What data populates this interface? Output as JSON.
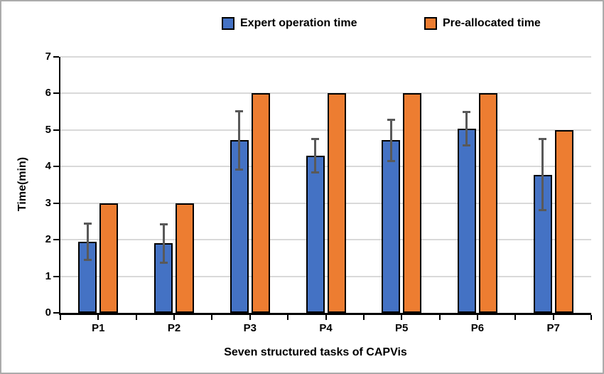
{
  "legend": {
    "items": [
      {
        "label": "Expert operation time",
        "color": "#4472c4"
      },
      {
        "label": "Pre-allocated time",
        "color": "#ed7d31"
      }
    ]
  },
  "chart_data": {
    "type": "bar",
    "title": "",
    "categories": [
      "P1",
      "P2",
      "P3",
      "P4",
      "P5",
      "P6",
      "P7"
    ],
    "series": [
      {
        "name": "Expert operation time",
        "color": "#4472c4",
        "values": [
          1.95,
          1.9,
          4.72,
          4.3,
          4.72,
          5.03,
          3.78
        ],
        "error_bars": [
          0.5,
          0.52,
          0.8,
          0.45,
          0.56,
          0.46,
          0.97
        ]
      },
      {
        "name": "Pre-allocated time",
        "color": "#ed7d31",
        "values": [
          3,
          3,
          6,
          6,
          6,
          6,
          5
        ]
      }
    ],
    "xlabel": "Seven structured tasks of CAPVis",
    "ylabel": "Time(min)",
    "ylim": [
      0,
      7
    ],
    "ytick_interval": 1,
    "ytick_labels": [
      "0",
      "1",
      "2",
      "3",
      "4",
      "5",
      "6",
      "7"
    ],
    "grid": "horizontal",
    "gridline_color": "#d9d9d9",
    "axis_color": "#000000",
    "error_bar_color": "#595959",
    "legend_position": "top-center"
  }
}
